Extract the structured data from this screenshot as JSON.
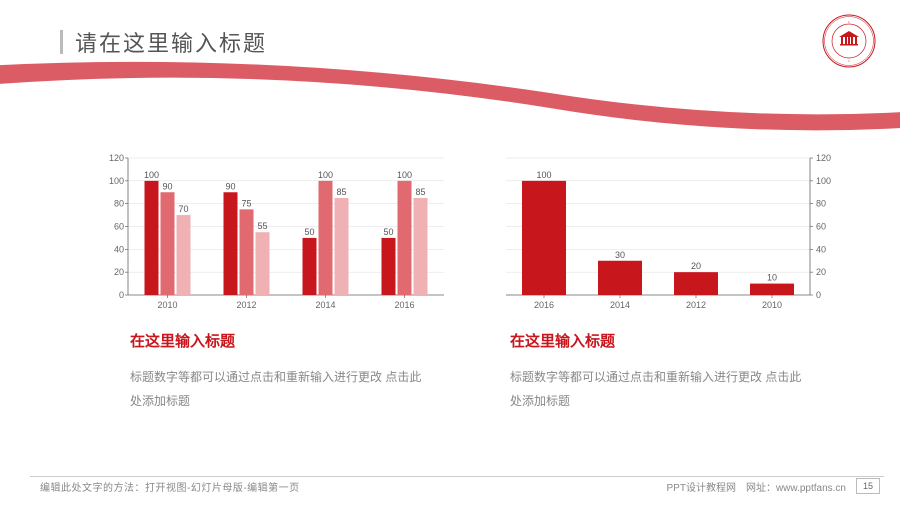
{
  "title": "请在这里输入标题",
  "logo": {
    "ring_color": "#c8161d",
    "inner_color": "#c8161d"
  },
  "swoosh_color": "#d84a55",
  "chart1": {
    "type": "grouped-bar",
    "categories": [
      "2010",
      "2012",
      "2014",
      "2016"
    ],
    "series_colors": [
      "#c8161d",
      "#e06a6f",
      "#efb1b4"
    ],
    "values": [
      [
        100,
        90,
        70
      ],
      [
        90,
        75,
        55
      ],
      [
        50,
        100,
        85
      ],
      [
        50,
        100,
        85
      ]
    ],
    "ylim": [
      0,
      120
    ],
    "ytick_step": 20,
    "axis_color": "#666666",
    "grid_color": "#dddddd",
    "label_fontsize": 9
  },
  "chart2": {
    "type": "bar",
    "categories": [
      "2016",
      "2014",
      "2012",
      "2010"
    ],
    "values": [
      100,
      30,
      20,
      10
    ],
    "bar_color": "#c8161d",
    "ylim": [
      0,
      120
    ],
    "ytick_step": 20,
    "axis_color": "#666666",
    "grid_color": "#dddddd",
    "label_fontsize": 9
  },
  "subsections": [
    {
      "title": "在这里输入标题",
      "body": "标题数字等都可以通过点击和重新输入进行更改 点击此处添加标题"
    },
    {
      "title": "在这里输入标题",
      "body": "标题数字等都可以通过点击和重新输入进行更改 点击此处添加标题"
    }
  ],
  "footer": {
    "left": "编辑此处文字的方法：打开视图-幻灯片母版-编辑第一页",
    "right_label": "PPT设计教程网",
    "right_prefix": "网址：",
    "right_url": "www.pptfans.cn",
    "page": "15"
  }
}
